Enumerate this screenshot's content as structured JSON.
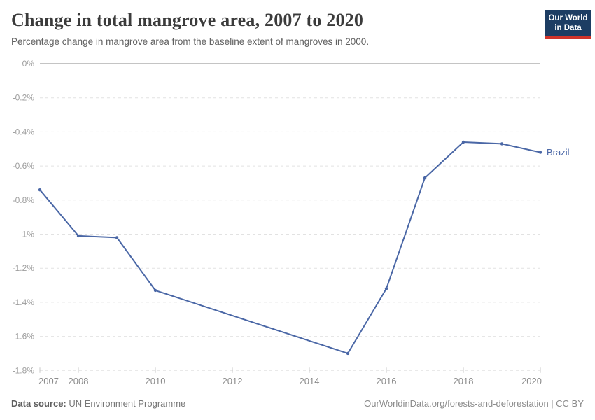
{
  "header": {
    "title": "Change in total mangrove area, 2007 to 2020",
    "subtitle": "Percentage change in mangrove area from the baseline extent of mangroves in 2000.",
    "logo": {
      "line1": "Our World",
      "line2": "in Data"
    }
  },
  "chart_data": {
    "type": "line",
    "title": "Change in total mangrove area, 2007 to 2020",
    "subtitle": "Percentage change in mangrove area from the baseline extent of mangroves in 2000.",
    "xlabel": "",
    "ylabel": "",
    "unit": "%",
    "xlim": [
      2007,
      2020
    ],
    "ylim": [
      -1.8,
      0
    ],
    "grid": "horizontal-dashed",
    "legend_position": "end-of-line-label",
    "x_ticks": [
      2007,
      2008,
      2010,
      2012,
      2014,
      2016,
      2018,
      2020
    ],
    "y_ticks": [
      0,
      -0.2,
      -0.4,
      -0.6,
      -0.8,
      -1.0,
      -1.2,
      -1.4,
      -1.6,
      -1.8
    ],
    "y_tick_labels": [
      "0%",
      "-0.2%",
      "-0.4%",
      "-0.6%",
      "-0.8%",
      "-1%",
      "-1.2%",
      "-1.4%",
      "-1.6%",
      "-1.8%"
    ],
    "series": [
      {
        "name": "Brazil",
        "color": "#4a67a6",
        "x": [
          2007,
          2008,
          2009,
          2010,
          2015,
          2016,
          2017,
          2018,
          2019,
          2020
        ],
        "values": [
          -0.74,
          -1.01,
          -1.02,
          -1.33,
          -1.7,
          -1.32,
          -0.67,
          -0.46,
          -0.47,
          -0.52
        ]
      }
    ]
  },
  "colors": {
    "line": "#4a67a6",
    "gridline": "#e2e2e2",
    "zero_line": "#c4c4c4",
    "y_tick_label": "#9e9e9e",
    "x_tick_label": "#8c8c8c",
    "axis_tick": "#c8c8c8",
    "logo_bg": "#1d3d63",
    "logo_accent": "#d1342a"
  },
  "footer": {
    "source_label": "Data source:",
    "source_value": "UN Environment Programme",
    "credit": "OurWorldinData.org/forests-and-deforestation | CC BY"
  }
}
